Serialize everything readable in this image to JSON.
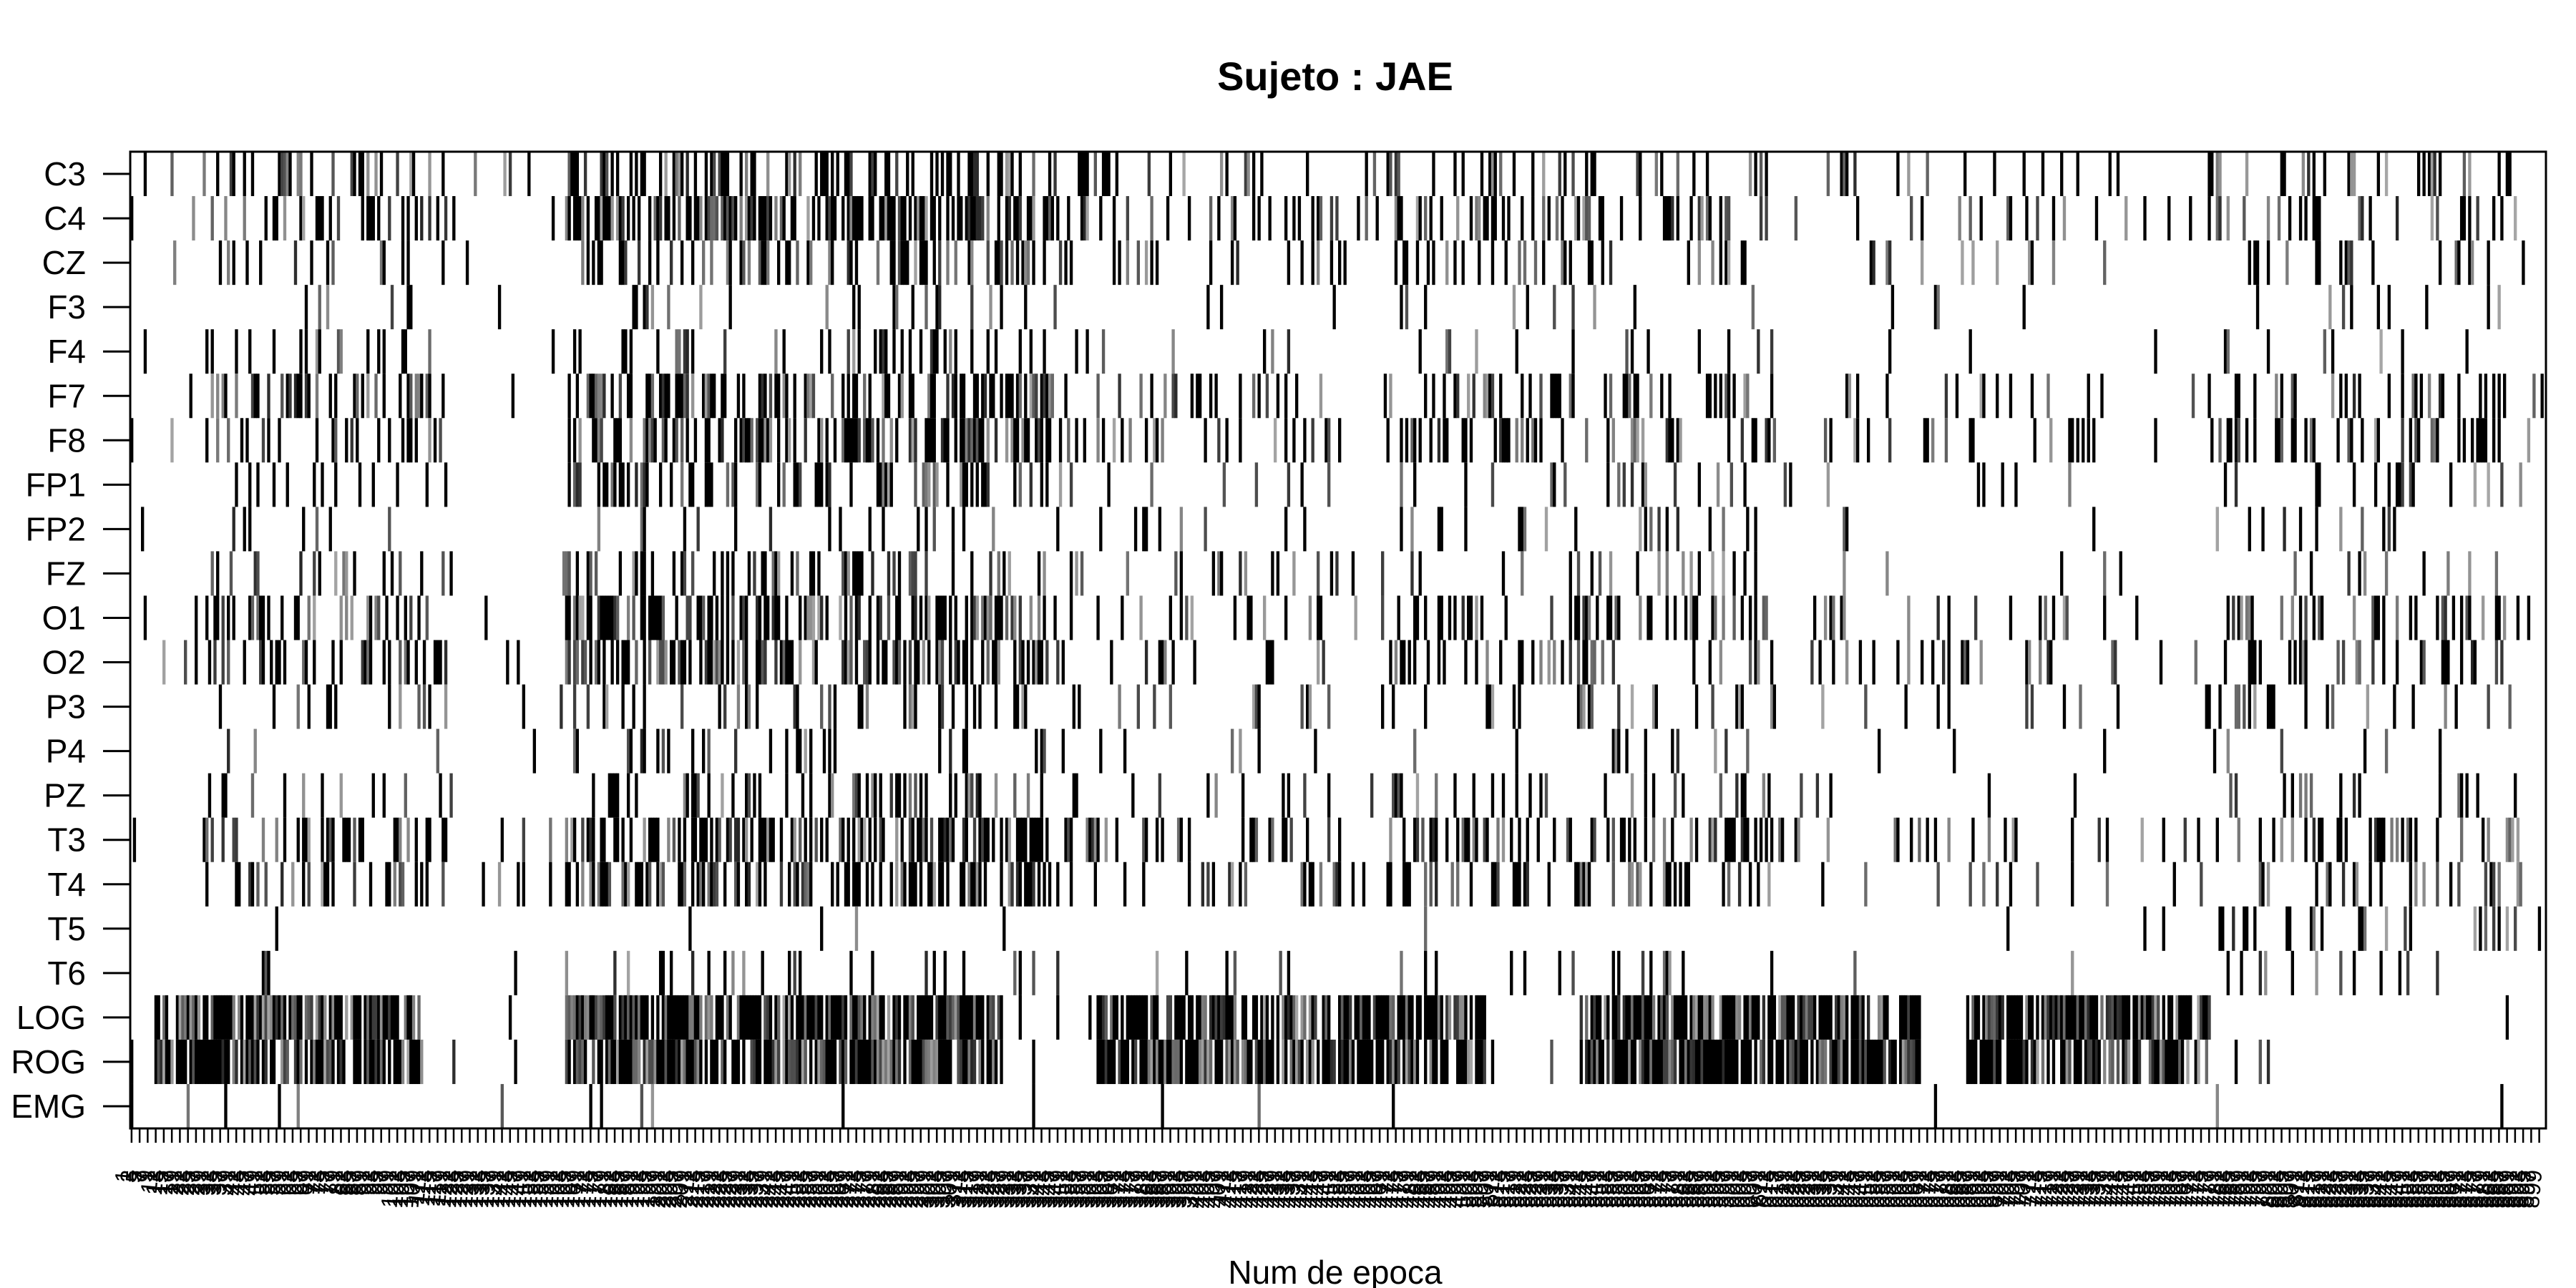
{
  "chart_data": {
    "type": "heatmap",
    "title": "Sujeto : JAE",
    "xlabel": "Num de epoca",
    "ylabel": "",
    "channels": [
      "C3",
      "C4",
      "CZ",
      "F3",
      "F4",
      "F7",
      "F8",
      "FP1",
      "FP2",
      "FZ",
      "O1",
      "O2",
      "P3",
      "P4",
      "PZ",
      "T3",
      "T4",
      "T5",
      "T6",
      "LOG",
      "ROG",
      "EMG"
    ],
    "n_epochs": 900,
    "color_scale": "grayscale, white = 0, black = 1",
    "grid": false,
    "legend": "none",
    "values": {}
  }
}
